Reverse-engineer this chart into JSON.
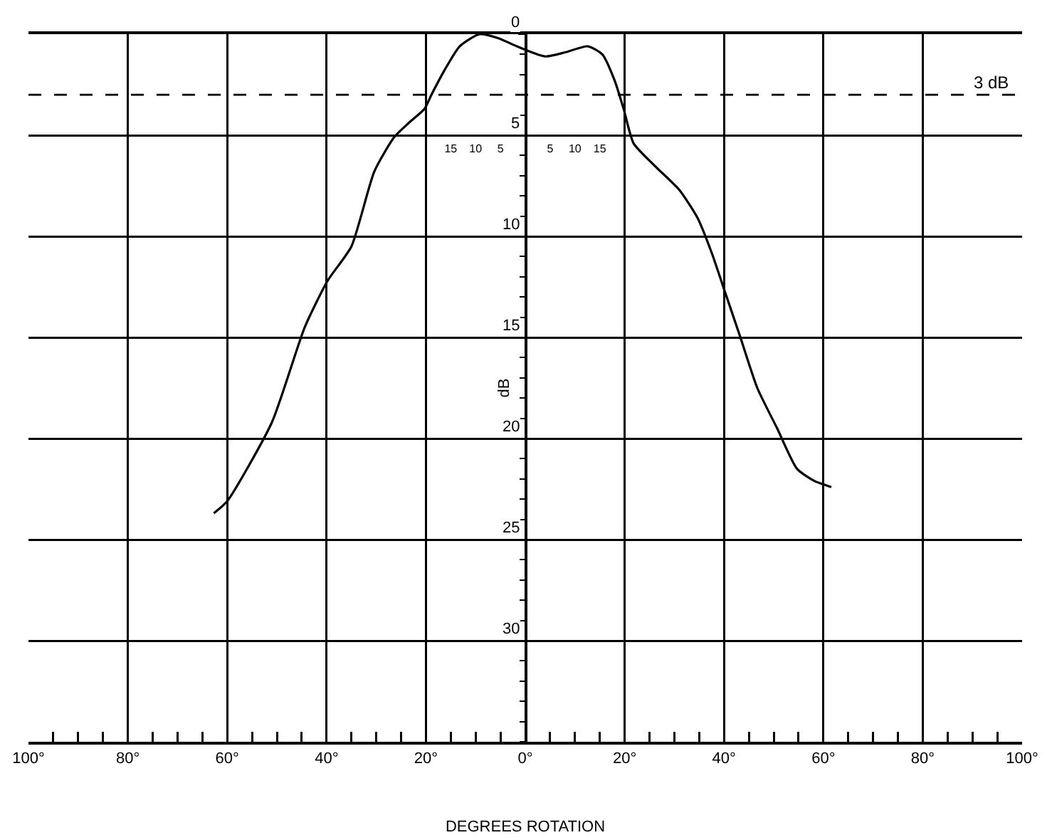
{
  "chart_data": {
    "type": "line",
    "xlabel": "DEGREES ROTATION",
    "ylabel": "dB",
    "x": [
      -62.7,
      -60,
      -51,
      -44.4,
      -39.8,
      -35,
      -30.4,
      -26.4,
      -23.5,
      -20.3,
      -18.9,
      -16.3,
      -13.2,
      -9.2,
      -5.4,
      -1.7,
      4,
      8,
      12.6,
      15.5,
      18,
      19.8,
      21.8,
      26,
      31,
      34.7,
      37.5,
      40.4,
      43.3,
      46.7,
      50.7,
      54.7,
      58.2,
      61.6
    ],
    "series": [
      {
        "color": "#000000",
        "values": [
          23.7,
          23.1,
          19.2,
          14.5,
          12.2,
          10.5,
          6.8,
          5.1,
          4.4,
          3.7,
          3.0,
          1.8,
          0.6,
          0,
          0.2,
          0.6,
          1.1,
          0.9,
          0.6,
          1.0,
          2.3,
          3.7,
          5.4,
          6.5,
          7.7,
          9.1,
          10.8,
          12.9,
          15,
          17.5,
          19.5,
          21.5,
          22.1,
          22.4
        ]
      }
    ],
    "xlim": [
      -100,
      100
    ],
    "xticks": [
      {
        "value": -100,
        "label": "100°"
      },
      {
        "value": -80,
        "label": "80°"
      },
      {
        "value": -60,
        "label": "60°"
      },
      {
        "value": -40,
        "label": "40°"
      },
      {
        "value": -20,
        "label": "20°"
      },
      {
        "value": 0,
        "label": "0°"
      },
      {
        "value": 20,
        "label": "20°"
      },
      {
        "value": 40,
        "label": "40°"
      },
      {
        "value": 60,
        "label": "60°"
      },
      {
        "value": 80,
        "label": "80°"
      },
      {
        "value": 100,
        "label": "100°"
      }
    ],
    "x2lim": [
      -100,
      100
    ],
    "x2ticks": [
      {
        "value": -15,
        "label": "15"
      },
      {
        "value": -10,
        "label": "10"
      },
      {
        "value": -5,
        "label": "5"
      },
      {
        "value": 5,
        "label": "5"
      },
      {
        "value": 10,
        "label": "10"
      },
      {
        "value": 15,
        "label": "15"
      }
    ],
    "ylim": [
      35,
      0
    ],
    "yticks": [
      0,
      5,
      10,
      15,
      20,
      25,
      30
    ],
    "ref_lines": [
      {
        "axis": "y",
        "value": 3,
        "label": "3 dB",
        "line_style": "dashed"
      }
    ],
    "grid": true,
    "marker": "none",
    "line_style": "solid"
  }
}
